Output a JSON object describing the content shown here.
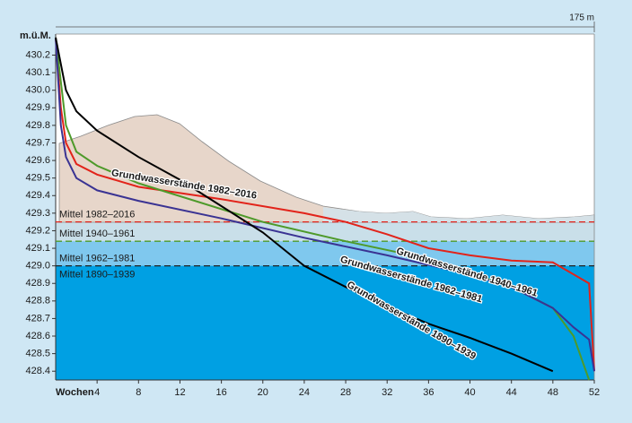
{
  "chart_data": {
    "type": "line",
    "y_label": "m.ü.M.",
    "x_label": "Wochen",
    "distance_label": "175 m",
    "xlim": [
      0,
      52
    ],
    "xticks": [
      4,
      8,
      12,
      16,
      20,
      24,
      28,
      32,
      36,
      40,
      44,
      48,
      52
    ],
    "ylim": [
      428.35,
      430.32
    ],
    "yticks": [
      430.2,
      430.1,
      {
        "value": 430.0,
        "label": "430.0"
      },
      429.9,
      429.8,
      429.7,
      429.6,
      429.5,
      429.4,
      429.3,
      429.2,
      429.1,
      {
        "value": 429.0,
        "label": "429.0"
      },
      428.9,
      428.8,
      428.7,
      428.6,
      428.5,
      428.4
    ],
    "reference_lines": [
      {
        "label": "Mittel 1982–2016",
        "value": 429.25,
        "color": "#e2231a"
      },
      {
        "label": "Mittel 1940–1961",
        "value": 429.14,
        "color": "#4e9a2a"
      },
      {
        "label": "Mittel 1962–1981",
        "value": 429.0,
        "color": "#3a3393"
      },
      {
        "label": "Mittel 1890–1939",
        "value": 429.0,
        "color": "#222222"
      }
    ],
    "series": [
      {
        "name": "Grundwasserstände 1982–2016",
        "color": "#e2231a",
        "x": [
          0,
          0.5,
          1,
          2,
          4,
          8,
          16,
          24,
          28,
          32,
          36,
          40,
          44,
          48,
          51.5,
          52
        ],
        "values": [
          430.3,
          429.9,
          429.7,
          429.58,
          429.52,
          429.45,
          429.38,
          429.3,
          429.25,
          429.18,
          429.1,
          429.06,
          429.03,
          429.02,
          428.9,
          428.4
        ]
      },
      {
        "name": "Grundwasserstände 1940–1961",
        "color": "#4e9a2a",
        "x": [
          0,
          1,
          2,
          4,
          8,
          20,
          28,
          36,
          44,
          48,
          50,
          51.5
        ],
        "values": [
          430.3,
          429.8,
          429.65,
          429.57,
          429.47,
          429.25,
          429.14,
          429.04,
          428.88,
          428.76,
          428.6,
          428.35
        ]
      },
      {
        "name": "Grundwasserstände 1962–1981",
        "color": "#3a3393",
        "x": [
          0,
          0.5,
          1,
          2,
          4,
          8,
          16,
          24,
          32,
          40,
          44,
          48,
          50,
          51.5,
          52
        ],
        "values": [
          430.3,
          429.8,
          429.62,
          429.5,
          429.43,
          429.37,
          429.27,
          429.16,
          429.06,
          428.95,
          428.88,
          428.76,
          428.65,
          428.58,
          428.4
        ]
      },
      {
        "name": "Grundwasserstände 1890–1939",
        "color": "#000000",
        "x": [
          0,
          1,
          2,
          4,
          8,
          12,
          16,
          20,
          24,
          28,
          32,
          36,
          40,
          44,
          48
        ],
        "values": [
          430.3,
          430.0,
          429.88,
          429.77,
          429.62,
          429.49,
          429.34,
          429.19,
          429.0,
          428.88,
          428.77,
          428.67,
          428.59,
          428.5,
          428.4
        ]
      }
    ]
  }
}
